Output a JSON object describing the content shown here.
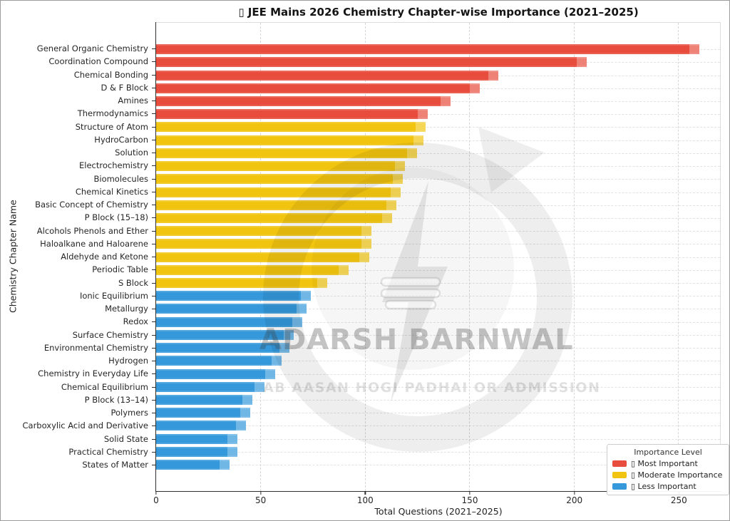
{
  "chart_data": {
    "type": "bar",
    "orientation": "horizontal",
    "title": "▯ JEE Mains 2026 Chemistry Chapter-wise Importance (2021–2025)",
    "xlabel": "Total Questions (2021–2025)",
    "ylabel": "Chemistry Chapter Name",
    "xlim": [
      0,
      270
    ],
    "xticks": [
      0,
      50,
      100,
      150,
      200,
      250
    ],
    "grid": "dashed vertical and horizontal gridlines",
    "colors": {
      "most": "#e74c3c",
      "moderate": "#f1c40f",
      "less": "#3498db"
    },
    "legend": {
      "title": "Importance Level",
      "position": "lower right",
      "entries": [
        {
          "label": "▯ Most Important",
          "group": "most",
          "color": "#e74c3c"
        },
        {
          "label": "▯ Moderate Importance",
          "group": "moderate",
          "color": "#f1c40f"
        },
        {
          "label": "▯ Less Important",
          "group": "less",
          "color": "#3498db"
        }
      ]
    },
    "bars": [
      {
        "label": "General Organic Chemistry",
        "value": 260,
        "group": "most"
      },
      {
        "label": "Coordination Compound",
        "value": 206,
        "group": "most"
      },
      {
        "label": "Chemical Bonding",
        "value": 164,
        "group": "most"
      },
      {
        "label": "D & F Block",
        "value": 155,
        "group": "most"
      },
      {
        "label": "Amines",
        "value": 141,
        "group": "most"
      },
      {
        "label": "Thermodynamics",
        "value": 130,
        "group": "most"
      },
      {
        "label": "Structure of Atom",
        "value": 129,
        "group": "moderate"
      },
      {
        "label": "HydroCarbon",
        "value": 128,
        "group": "moderate"
      },
      {
        "label": "Solution",
        "value": 125,
        "group": "moderate"
      },
      {
        "label": "Electrochemistry",
        "value": 119,
        "group": "moderate"
      },
      {
        "label": "Biomolecules",
        "value": 118,
        "group": "moderate"
      },
      {
        "label": "Chemical Kinetics",
        "value": 117,
        "group": "moderate"
      },
      {
        "label": "Basic Concept of Chemistry",
        "value": 115,
        "group": "moderate"
      },
      {
        "label": "P Block (15–18)",
        "value": 113,
        "group": "moderate"
      },
      {
        "label": "Alcohols Phenols and Ether",
        "value": 103,
        "group": "moderate"
      },
      {
        "label": "Haloalkane and Haloarene",
        "value": 103,
        "group": "moderate"
      },
      {
        "label": "Aldehyde and Ketone",
        "value": 102,
        "group": "moderate"
      },
      {
        "label": "Periodic Table",
        "value": 92,
        "group": "moderate"
      },
      {
        "label": "S Block",
        "value": 82,
        "group": "moderate"
      },
      {
        "label": "Ionic Equilibrium",
        "value": 74,
        "group": "less"
      },
      {
        "label": "Metallurgy",
        "value": 72,
        "group": "less"
      },
      {
        "label": "Redox",
        "value": 70,
        "group": "less"
      },
      {
        "label": "Surface Chemistry",
        "value": 66,
        "group": "less"
      },
      {
        "label": "Environmental Chemistry",
        "value": 64,
        "group": "less"
      },
      {
        "label": "Hydrogen",
        "value": 60,
        "group": "less"
      },
      {
        "label": "Chemistry in Everyday Life",
        "value": 57,
        "group": "less"
      },
      {
        "label": "Chemical Equilibrium",
        "value": 52,
        "group": "less"
      },
      {
        "label": "P Block (13–14)",
        "value": 46,
        "group": "less"
      },
      {
        "label": "Polymers",
        "value": 45,
        "group": "less"
      },
      {
        "label": "Carboxylic Acid and Derivative",
        "value": 43,
        "group": "less"
      },
      {
        "label": "Solid State",
        "value": 39,
        "group": "less"
      },
      {
        "label": "Practical Chemistry",
        "value": 39,
        "group": "less"
      },
      {
        "label": "States of Matter",
        "value": 35,
        "group": "less"
      }
    ],
    "watermark": {
      "line1": "ADARSH BARNWAL",
      "line2": "AB AASAN HOGI PADHAI OR ADMISSION",
      "logo": "circular-arrow-bulb-lightning-logo"
    }
  }
}
